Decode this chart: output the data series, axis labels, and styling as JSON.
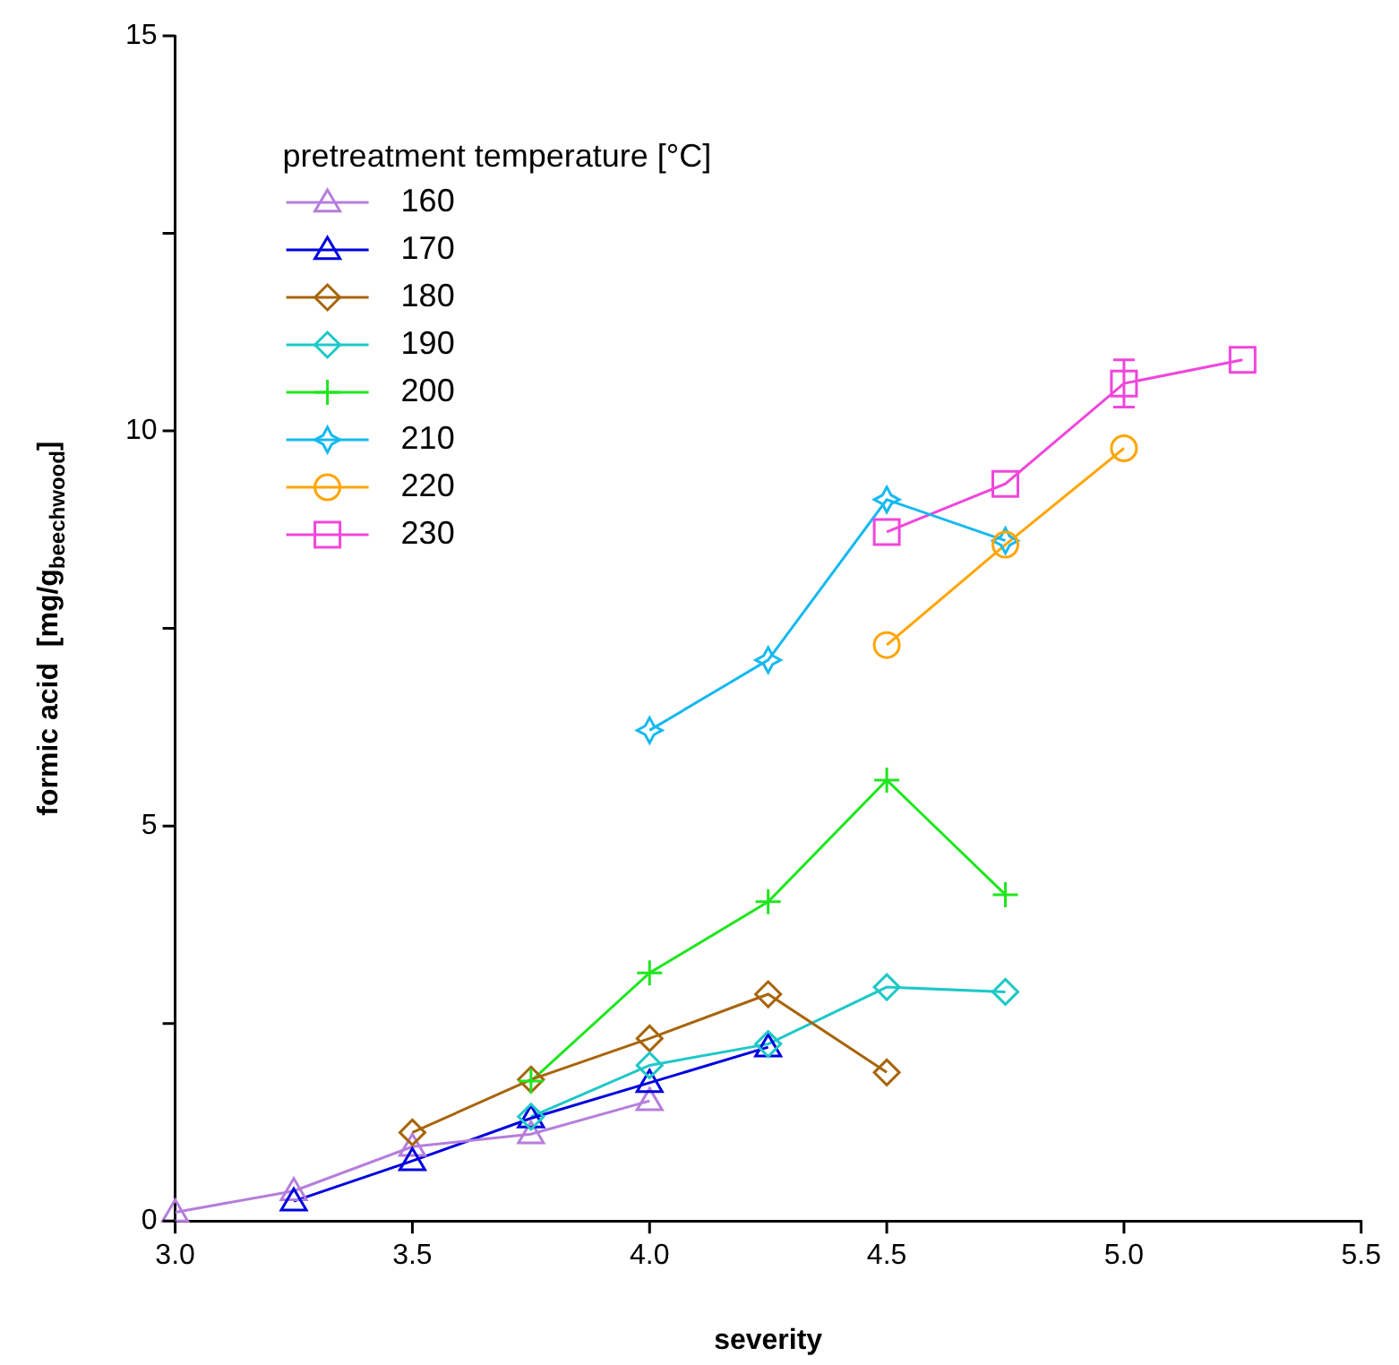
{
  "chart_data": {
    "type": "line",
    "xlabel": "severity",
    "ylabel": "formic acid  [mg/g$_{beechwood}$]",
    "legend_title": "pretreatment temperature [°C]",
    "legend": "top left",
    "grid": false,
    "xlim": [
      3.0,
      5.5
    ],
    "xticks": [
      {
        "value": 3,
        "label": "3.0"
      },
      {
        "value": 3.5,
        "label": "3.5"
      },
      {
        "value": 4,
        "label": "4.0"
      },
      {
        "value": 4.5,
        "label": "4.5"
      },
      {
        "value": 5,
        "label": "5.0"
      },
      {
        "value": 5.5,
        "label": "5.5"
      }
    ],
    "ylim": [
      0,
      15
    ],
    "yticks": [
      0,
      {
        "value": 2.5,
        "label": null
      },
      5,
      {
        "value": 7.5,
        "label": null
      },
      10,
      {
        "value": 12.5,
        "label": null
      },
      15
    ],
    "series": [
      {
        "name": "160",
        "color": "#b57edc",
        "marker": "triangle",
        "x": [
          3.0,
          3.25,
          3.5,
          3.75,
          4.0
        ],
        "values": [
          0.11,
          0.38,
          0.94,
          1.1,
          1.52
        ]
      },
      {
        "name": "170",
        "color": "#0000e0",
        "marker": "triangle",
        "x": [
          3.25,
          3.5,
          3.75,
          4.0,
          4.25
        ],
        "values": [
          0.25,
          0.76,
          1.3,
          1.75,
          2.2
        ]
      },
      {
        "name": "180",
        "color": "#a8640a",
        "marker": "diamond",
        "x": [
          3.5,
          3.75,
          4.0,
          4.25,
          4.5
        ],
        "values": [
          1.12,
          1.79,
          2.31,
          2.87,
          1.88
        ]
      },
      {
        "name": "190",
        "color": "#1ec8c8",
        "marker": "diamond",
        "x": [
          3.75,
          4.0,
          4.25,
          4.5,
          4.75
        ],
        "values": [
          1.32,
          1.97,
          2.24,
          2.96,
          2.9
        ]
      },
      {
        "name": "200",
        "color": "#1ee61e",
        "marker": "cross",
        "x": [
          3.75,
          4.0,
          4.25,
          4.5,
          4.75
        ],
        "values": [
          1.77,
          3.14,
          4.04,
          5.58,
          4.13
        ]
      },
      {
        "name": "210",
        "color": "#14b9f0",
        "marker": "star",
        "x": [
          4.0,
          4.25,
          4.5,
          4.75
        ],
        "values": [
          6.21,
          7.1,
          9.13,
          8.61
        ]
      },
      {
        "name": "220",
        "color": "#ffa500",
        "marker": "circle",
        "x": [
          4.5,
          4.75,
          5.0
        ],
        "values": [
          7.29,
          8.56,
          9.78
        ]
      },
      {
        "name": "230",
        "color": "#f046dc",
        "marker": "square",
        "x": [
          4.5,
          4.75,
          5.0,
          5.25
        ],
        "values": [
          8.72,
          9.33,
          10.6,
          10.9
        ],
        "errors": [
          null,
          null,
          0.3,
          null
        ]
      }
    ]
  }
}
